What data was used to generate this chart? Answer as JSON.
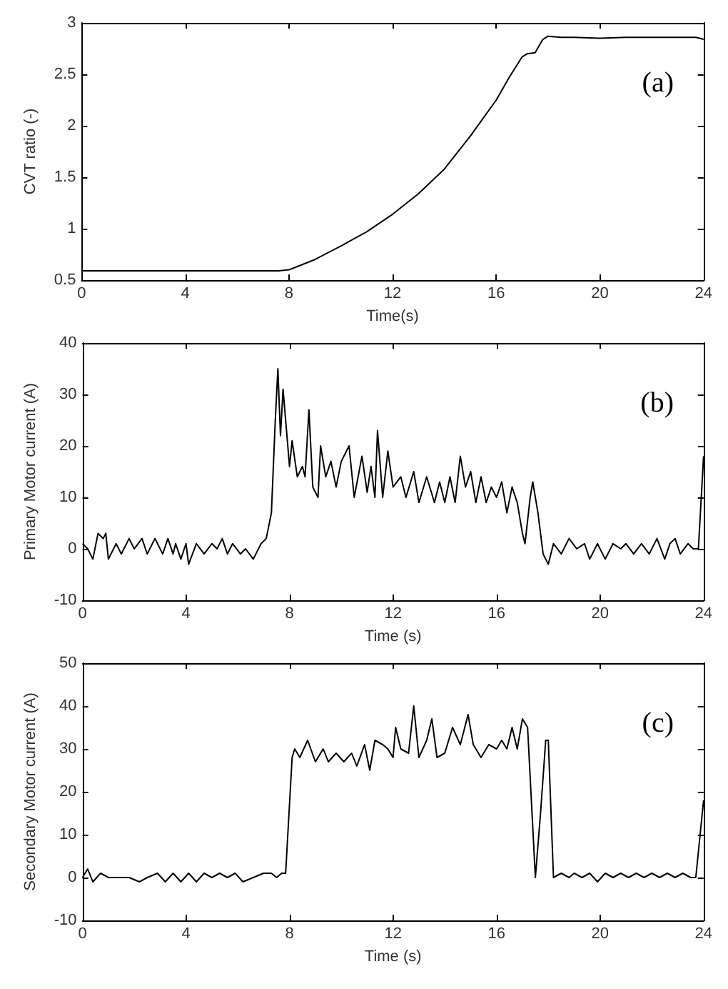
{
  "chart_data": [
    {
      "type": "line",
      "xlabel": "Time(s)",
      "ylabel": "CVT ratio (-)",
      "annotations": [
        "(a)"
      ],
      "xlim": [
        0,
        24
      ],
      "xticks": [
        0,
        4,
        8,
        12,
        16,
        20,
        24
      ],
      "ylim": [
        0.5,
        3
      ],
      "yticks": [
        0.5,
        1,
        1.5,
        2,
        2.5,
        3
      ],
      "x": [
        0,
        7.6,
        8,
        8.2,
        9,
        10,
        11,
        12,
        13,
        14,
        15,
        16,
        16.5,
        17,
        17.2,
        17.5,
        17.8,
        18,
        18.5,
        19,
        20,
        21,
        22,
        23,
        23.7,
        24
      ],
      "series": [
        {
          "color": "#000000",
          "values": [
            0.59,
            0.59,
            0.6,
            0.62,
            0.7,
            0.83,
            0.97,
            1.14,
            1.34,
            1.58,
            1.9,
            2.25,
            2.47,
            2.67,
            2.7,
            2.71,
            2.84,
            2.87,
            2.86,
            2.86,
            2.85,
            2.86,
            2.86,
            2.86,
            2.86,
            2.84
          ]
        }
      ]
    },
    {
      "type": "line",
      "xlabel": "Time (s)",
      "ylabel": "Primary Motor current (A)",
      "annotations": [
        "(b)"
      ],
      "xlim": [
        0,
        24
      ],
      "xticks": [
        0,
        4,
        8,
        12,
        16,
        20,
        24
      ],
      "ylim": [
        -10,
        40
      ],
      "yticks": [
        -10,
        0,
        10,
        20,
        30,
        40
      ],
      "x": [
        0,
        0.2,
        0.4,
        0.6,
        0.8,
        0.9,
        1,
        1.3,
        1.5,
        1.8,
        2,
        2.3,
        2.5,
        2.8,
        3.1,
        3.3,
        3.5,
        3.6,
        3.8,
        4.0,
        4.1,
        4.4,
        4.7,
        5.0,
        5.2,
        5.4,
        5.6,
        5.8,
        6.1,
        6.3,
        6.6,
        6.9,
        7.1,
        7.3,
        7.45,
        7.55,
        7.65,
        7.75,
        7.9,
        8.0,
        8.1,
        8.3,
        8.5,
        8.6,
        8.75,
        8.9,
        9.1,
        9.2,
        9.4,
        9.6,
        9.8,
        10.0,
        10.3,
        10.5,
        10.8,
        11.0,
        11.15,
        11.3,
        11.4,
        11.6,
        11.8,
        12.0,
        12.3,
        12.5,
        12.8,
        13.0,
        13.3,
        13.6,
        13.8,
        14.0,
        14.2,
        14.4,
        14.6,
        14.8,
        15.0,
        15.2,
        15.4,
        15.6,
        15.8,
        16.0,
        16.2,
        16.4,
        16.6,
        16.8,
        17.0,
        17.1,
        17.3,
        17.4,
        17.6,
        17.8,
        18.0,
        18.2,
        18.5,
        18.8,
        19.1,
        19.4,
        19.6,
        19.9,
        20.2,
        20.5,
        20.8,
        21.0,
        21.3,
        21.6,
        21.9,
        22.2,
        22.5,
        22.7,
        22.9,
        23.1,
        23.4,
        23.6,
        23.8,
        24
      ],
      "series": [
        {
          "color": "#000000",
          "values": [
            1,
            0,
            -2,
            3,
            2,
            3,
            -2,
            1,
            -1,
            2,
            0,
            2,
            -1,
            2,
            -1,
            2,
            -1,
            1,
            -2,
            1,
            -3,
            1,
            -1,
            1,
            0,
            2,
            -1,
            1,
            -1,
            0,
            -2,
            1,
            2,
            7,
            25,
            35,
            22,
            31,
            22,
            16,
            21,
            14,
            16,
            14,
            27,
            12,
            10,
            20,
            14,
            17,
            12,
            17,
            20,
            10,
            18,
            11,
            16,
            10,
            23,
            10,
            19,
            12,
            14,
            10,
            15,
            9,
            14,
            9,
            13,
            9,
            14,
            9,
            18,
            12,
            15,
            9,
            14,
            9,
            12,
            10,
            13,
            7,
            12,
            9,
            3,
            1,
            10,
            13,
            7,
            -1,
            -3,
            1,
            -1,
            2,
            0,
            1,
            -2,
            1,
            -2,
            1,
            0,
            1,
            -1,
            1,
            -1,
            2,
            -2,
            1,
            2,
            -1,
            1,
            0,
            0,
            18
          ]
        }
      ]
    },
    {
      "type": "line",
      "xlabel": "Time (s)",
      "ylabel": "Secondary Motor current (A)",
      "annotations": [
        "(c)"
      ],
      "xlim": [
        0,
        24
      ],
      "xticks": [
        0,
        4,
        8,
        12,
        16,
        20,
        24
      ],
      "ylim": [
        -10,
        50
      ],
      "yticks": [
        -10,
        0,
        10,
        20,
        30,
        40,
        50
      ],
      "x": [
        0,
        0.2,
        0.4,
        0.7,
        1,
        1.4,
        1.8,
        2.2,
        2.5,
        2.9,
        3.2,
        3.5,
        3.8,
        4.1,
        4.4,
        4.7,
        5.0,
        5.3,
        5.6,
        5.9,
        6.2,
        6.6,
        7.0,
        7.3,
        7.5,
        7.7,
        7.85,
        8.1,
        8.2,
        8.4,
        8.7,
        9.0,
        9.3,
        9.5,
        9.8,
        10.1,
        10.4,
        10.6,
        10.9,
        11.1,
        11.3,
        11.6,
        11.8,
        12.0,
        12.1,
        12.3,
        12.6,
        12.8,
        13.0,
        13.3,
        13.5,
        13.7,
        14.0,
        14.3,
        14.6,
        14.9,
        15.1,
        15.4,
        15.7,
        16.0,
        16.2,
        16.4,
        16.6,
        16.8,
        17.0,
        17.2,
        17.5,
        17.7,
        17.9,
        18.0,
        18.2,
        18.5,
        18.8,
        19.0,
        19.3,
        19.6,
        19.9,
        20.2,
        20.5,
        20.8,
        21.1,
        21.4,
        21.7,
        22.0,
        22.3,
        22.6,
        22.9,
        23.2,
        23.5,
        23.7,
        24
      ],
      "series": [
        {
          "color": "#000000",
          "values": [
            0,
            2,
            -1,
            1,
            0,
            0,
            0,
            -1,
            0,
            1,
            -1,
            1,
            -1,
            1,
            -1,
            1,
            0,
            1,
            0,
            1,
            -1,
            0,
            1,
            1,
            0,
            1,
            1,
            28,
            30,
            28,
            32,
            27,
            30,
            27,
            29,
            27,
            29,
            26,
            31,
            25,
            32,
            31,
            30,
            28,
            35,
            30,
            29,
            40,
            28,
            32,
            37,
            28,
            29,
            35,
            31,
            38,
            31,
            28,
            31,
            30,
            32,
            30,
            35,
            30,
            37,
            35,
            0,
            15,
            32,
            32,
            0,
            1,
            0,
            1,
            0,
            1,
            -1,
            1,
            0,
            1,
            0,
            1,
            0,
            1,
            0,
            1,
            0,
            1,
            0,
            0,
            18
          ]
        }
      ]
    }
  ]
}
